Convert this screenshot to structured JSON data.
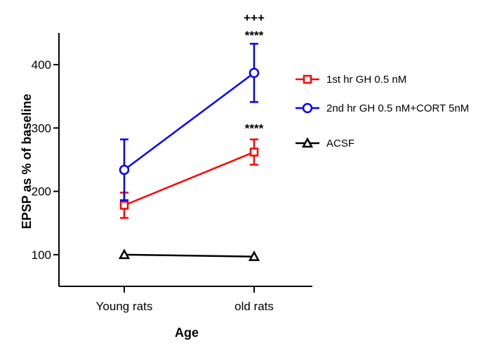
{
  "chart_data": {
    "type": "line",
    "title": "",
    "xlabel": "Age",
    "ylabel": "EPSP as % of baseline",
    "categories": [
      "Young rats",
      "old rats"
    ],
    "ylim": [
      50,
      450
    ],
    "yticks": [
      100,
      200,
      300,
      400
    ],
    "grid": false,
    "legend_position": "right",
    "series": [
      {
        "name": "1st hr GH 0.5 nM",
        "color": "#ff0000",
        "marker": "square",
        "values": [
          178,
          262
        ],
        "errors": [
          20,
          20
        ]
      },
      {
        "name": "2nd hr GH 0.5 nM+CORT 5nM",
        "color": "#0000ff",
        "marker": "circle",
        "values": [
          234,
          387
        ],
        "errors": [
          48,
          46
        ]
      },
      {
        "name": "ACSF",
        "color": "#000000",
        "marker": "triangle",
        "values": [
          100,
          97
        ],
        "errors": [
          0,
          0
        ]
      }
    ],
    "annotations": [
      {
        "text": "+++",
        "category": "old rats",
        "y": 468
      },
      {
        "text": "****",
        "category": "old rats",
        "y": 440
      },
      {
        "text": "****",
        "category": "old rats",
        "y": 293
      }
    ]
  }
}
